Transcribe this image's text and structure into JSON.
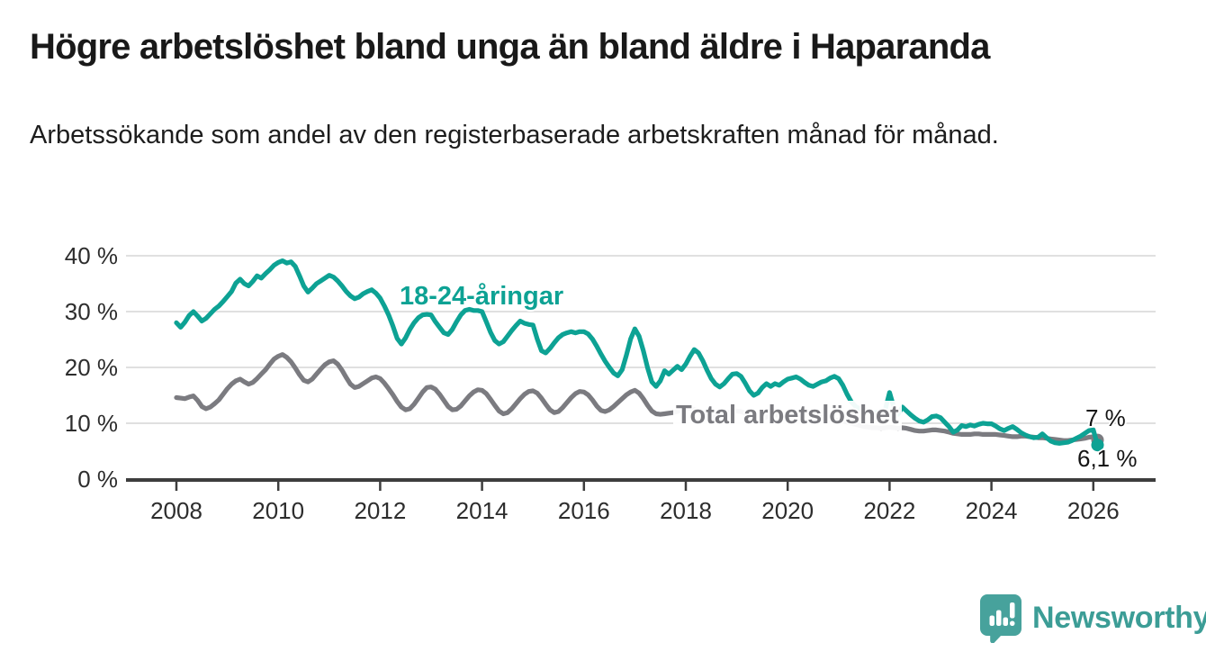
{
  "header": {
    "title": "Högre arbetslöshet bland unga än bland äldre i Haparanda",
    "subtitle": "Arbetssökande som andel av den registerbaserade arbetskraften månad för månad."
  },
  "branding": {
    "name": "Newsworthy",
    "logo_icon": "bar-chart-speech-bubble-icon",
    "logo_color": "#47a29c",
    "text_color": "#3c9d96"
  },
  "chart_data": {
    "type": "line",
    "title": "Högre arbetslöshet bland unga än bland äldre i Haparanda",
    "xlabel": "",
    "ylabel": "",
    "unit": "%",
    "grid": "horizontal",
    "legend_position": "inline-labels",
    "ylim": [
      0,
      42
    ],
    "x_range_years": [
      2008,
      2026.2
    ],
    "x_frequency": "monthly",
    "start_month": "2008-01",
    "end_month": "2026-02",
    "y_axis": {
      "ticks": [
        {
          "value": 0,
          "label": "0 %"
        },
        {
          "value": 10,
          "label": "10 %"
        },
        {
          "value": 20,
          "label": "20 %"
        },
        {
          "value": 30,
          "label": "30 %"
        },
        {
          "value": 40,
          "label": "40 %"
        }
      ]
    },
    "x_axis": {
      "ticks": [
        {
          "value": 2008,
          "label": "2008"
        },
        {
          "value": 2010,
          "label": "2010"
        },
        {
          "value": 2012,
          "label": "2012"
        },
        {
          "value": 2014,
          "label": "2014"
        },
        {
          "value": 2016,
          "label": "2016"
        },
        {
          "value": 2018,
          "label": "2018"
        },
        {
          "value": 2020,
          "label": "2020"
        },
        {
          "value": 2022,
          "label": "2022"
        },
        {
          "value": 2024,
          "label": "2024"
        },
        {
          "value": 2026,
          "label": "2026"
        }
      ]
    },
    "series": [
      {
        "id": "youth",
        "name": "18-24-åringar",
        "color": "#0da294",
        "latest_label": "6,1 %",
        "latest_value": 6.1,
        "monthly_values": [
          28.0,
          27.2,
          28.1,
          29.3,
          30.0,
          29.2,
          28.3,
          28.8,
          29.6,
          30.4,
          31.0,
          31.8,
          32.7,
          33.6,
          35.1,
          35.8,
          35.0,
          34.6,
          35.4,
          36.4,
          36.0,
          36.8,
          37.5,
          38.3,
          38.8,
          39.1,
          38.7,
          38.9,
          38.1,
          36.4,
          34.6,
          33.5,
          34.2,
          35.0,
          35.5,
          36.0,
          36.5,
          36.2,
          35.5,
          34.6,
          33.6,
          32.8,
          32.3,
          32.6,
          33.2,
          33.6,
          33.9,
          33.3,
          32.4,
          31.0,
          29.4,
          27.4,
          25.2,
          24.2,
          25.3,
          26.8,
          28.0,
          28.9,
          29.4,
          29.5,
          29.4,
          28.2,
          27.2,
          26.2,
          25.9,
          26.8,
          28.2,
          29.4,
          30.2,
          30.4,
          30.2,
          30.2,
          30.0,
          28.2,
          26.3,
          24.8,
          24.2,
          24.6,
          25.6,
          26.6,
          27.5,
          28.3,
          27.9,
          27.7,
          27.6,
          25.1,
          23.0,
          22.6,
          23.4,
          24.4,
          25.3,
          25.9,
          26.2,
          26.4,
          26.2,
          26.4,
          26.4,
          26.0,
          25.1,
          23.8,
          22.4,
          21.1,
          20.0,
          19.0,
          18.5,
          19.6,
          22.2,
          25.1,
          26.9,
          25.6,
          23.0,
          19.9,
          17.4,
          16.6,
          17.6,
          19.4,
          18.8,
          19.5,
          20.2,
          19.6,
          20.6,
          22.0,
          23.2,
          22.6,
          21.2,
          19.5,
          18.0,
          17.0,
          16.5,
          17.1,
          18.0,
          18.8,
          18.9,
          18.4,
          17.2,
          15.8,
          15.0,
          15.4,
          16.4,
          17.1,
          16.6,
          17.1,
          16.8,
          17.4,
          17.9,
          18.1,
          18.3,
          17.9,
          17.3,
          16.8,
          16.6,
          17.0,
          17.4,
          17.6,
          18.1,
          18.4,
          18.0,
          16.8,
          15.2,
          13.8,
          13.0,
          12.6,
          12.3,
          12.1,
          11.9,
          11.9,
          12.1,
          12.5,
          15.5,
          12.9,
          11.6,
          12.9,
          12.2,
          11.5,
          10.9,
          10.4,
          10.2,
          10.6,
          11.2,
          11.3,
          11.0,
          10.2,
          9.4,
          8.4,
          8.8,
          9.6,
          9.4,
          9.7,
          9.5,
          9.8,
          10.0,
          9.9,
          9.9,
          9.5,
          9.0,
          8.7,
          9.1,
          9.4,
          8.9,
          8.3,
          7.9,
          7.6,
          7.4,
          7.5,
          8.1,
          7.4,
          6.8,
          6.5,
          6.4,
          6.5,
          6.6,
          6.9,
          7.3,
          7.7,
          8.2,
          8.7,
          8.8,
          6.1
        ]
      },
      {
        "id": "total",
        "name": "Total arbetslöshet",
        "color": "#7b7b80",
        "latest_label": "7 %",
        "latest_value": 7.0,
        "monthly_values": [
          14.6,
          14.5,
          14.4,
          14.7,
          14.9,
          14.1,
          13.0,
          12.6,
          12.9,
          13.5,
          14.2,
          15.2,
          16.2,
          17.0,
          17.6,
          17.9,
          17.4,
          17.0,
          17.3,
          18.0,
          18.8,
          19.6,
          20.6,
          21.5,
          22.0,
          22.3,
          21.8,
          21.0,
          19.9,
          18.7,
          17.7,
          17.4,
          17.9,
          18.8,
          19.7,
          20.5,
          21.0,
          21.2,
          20.6,
          19.5,
          18.2,
          17.0,
          16.4,
          16.6,
          17.1,
          17.6,
          18.1,
          18.3,
          18.0,
          17.2,
          16.2,
          15.1,
          13.9,
          12.9,
          12.4,
          12.6,
          13.4,
          14.5,
          15.6,
          16.4,
          16.5,
          16.1,
          15.2,
          14.1,
          13.0,
          12.4,
          12.5,
          13.1,
          14.0,
          14.9,
          15.6,
          16.0,
          15.9,
          15.3,
          14.3,
          13.2,
          12.2,
          11.7,
          11.9,
          12.6,
          13.5,
          14.4,
          15.2,
          15.7,
          15.8,
          15.4,
          14.5,
          13.4,
          12.4,
          11.9,
          12.1,
          12.8,
          13.7,
          14.6,
          15.3,
          15.7,
          15.6,
          15.1,
          14.2,
          13.1,
          12.3,
          12.1,
          12.4,
          13.0,
          13.7,
          14.4,
          15.1,
          15.6,
          15.9,
          15.4,
          14.4,
          13.2,
          12.2,
          11.7,
          11.6,
          11.7,
          11.8,
          11.9,
          12.1,
          12.4,
          12.6,
          12.7,
          12.5,
          12.1,
          11.6,
          11.2,
          11.0,
          11.1,
          11.3,
          11.6,
          11.9,
          12.1,
          12.2,
          12.1,
          11.8,
          11.4,
          11.0,
          10.8,
          10.9,
          11.1,
          11.3,
          11.4,
          11.5,
          11.6,
          11.7,
          11.6,
          11.8,
          12.1,
          12.3,
          12.0,
          11.6,
          11.3,
          11.0,
          10.8,
          10.7,
          10.6,
          10.5,
          10.4,
          10.2,
          10.0,
          9.8,
          9.6,
          9.4,
          9.3,
          9.2,
          9.2,
          9.1,
          9.2,
          9.3,
          9.2,
          9.1,
          9.2,
          9.1,
          8.9,
          8.7,
          8.6,
          8.6,
          8.7,
          8.8,
          8.8,
          8.7,
          8.6,
          8.4,
          8.2,
          8.1,
          8.0,
          8.0,
          8.0,
          8.1,
          8.1,
          8.0,
          8.0,
          8.0,
          8.0,
          7.9,
          7.8,
          7.7,
          7.6,
          7.6,
          7.7,
          7.7,
          7.6,
          7.5,
          7.4,
          7.4,
          7.3,
          7.2,
          7.1,
          7.0,
          6.9,
          6.9,
          7.0,
          7.1,
          7.2,
          7.3,
          7.5,
          7.6,
          7.0
        ]
      }
    ],
    "style": {
      "gridline_color": "#dcdcdc",
      "axis_color": "#3d3d3d",
      "tick_text_color": "#2d2d2d",
      "line_width": 5.2
    }
  }
}
